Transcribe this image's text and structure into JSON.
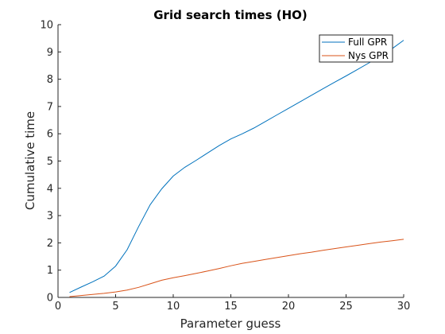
{
  "chart_data": {
    "type": "line",
    "title": "Grid search times (HO)",
    "xlabel": "Parameter guess",
    "ylabel": "Cumulative time",
    "xlim": [
      0,
      30
    ],
    "ylim": [
      0,
      10
    ],
    "xticks": [
      "0",
      "5",
      "10",
      "15",
      "20",
      "25",
      "30"
    ],
    "yticks": [
      "0",
      "1",
      "2",
      "3",
      "4",
      "5",
      "6",
      "7",
      "8",
      "9",
      "10"
    ],
    "grid": false,
    "legend_position": "top-right",
    "x": [
      1,
      2,
      3,
      4,
      5,
      6,
      7,
      8,
      9,
      10,
      11,
      12,
      13,
      14,
      15,
      16,
      17,
      18,
      19,
      20,
      21,
      22,
      23,
      24,
      25,
      26,
      27,
      28,
      29,
      30
    ],
    "series": [
      {
        "name": "Full GPR",
        "color": "#0072BD",
        "values": [
          0.18,
          0.38,
          0.57,
          0.78,
          1.15,
          1.75,
          2.6,
          3.4,
          3.98,
          4.45,
          4.77,
          5.03,
          5.3,
          5.57,
          5.81,
          6.0,
          6.21,
          6.45,
          6.69,
          6.93,
          7.17,
          7.41,
          7.65,
          7.89,
          8.12,
          8.36,
          8.6,
          8.85,
          9.12,
          9.43
        ]
      },
      {
        "name": "Nys GPR",
        "color": "#D95319",
        "values": [
          0.03,
          0.07,
          0.11,
          0.15,
          0.2,
          0.27,
          0.37,
          0.5,
          0.63,
          0.72,
          0.8,
          0.88,
          0.97,
          1.06,
          1.16,
          1.25,
          1.32,
          1.39,
          1.46,
          1.53,
          1.6,
          1.66,
          1.73,
          1.79,
          1.85,
          1.91,
          1.97,
          2.03,
          2.08,
          2.13
        ]
      }
    ]
  }
}
